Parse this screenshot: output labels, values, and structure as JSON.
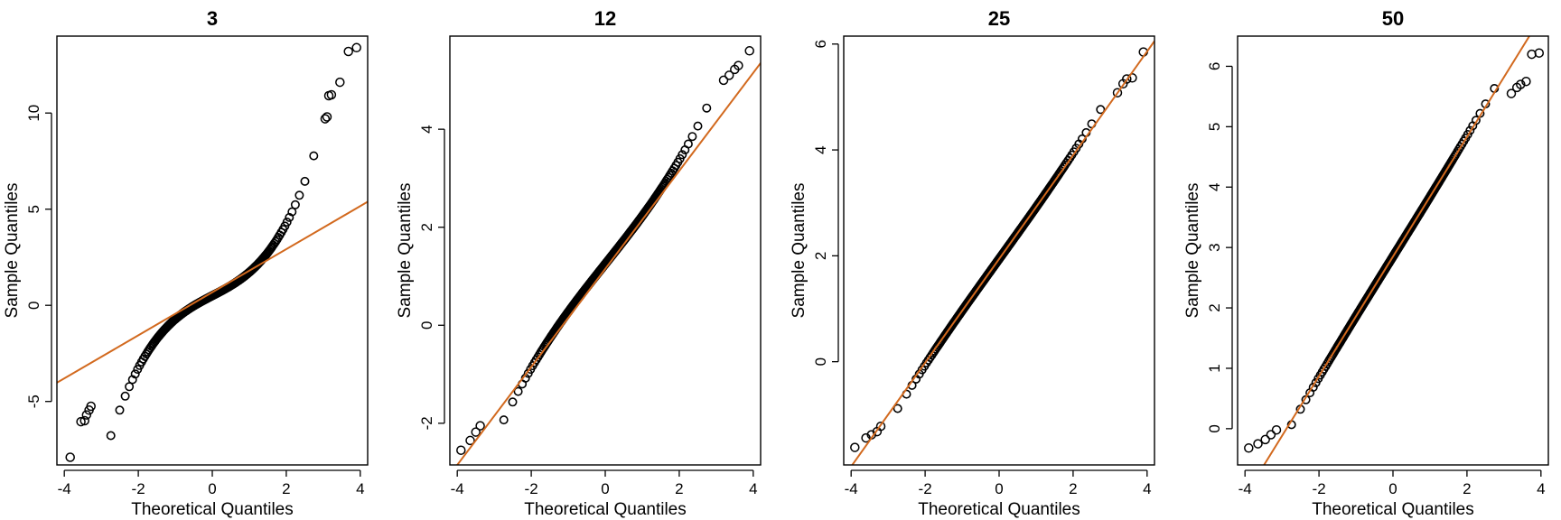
{
  "colors": {
    "points": "#000000",
    "reference_line": "#d2691e",
    "axes": "#000000",
    "background": "#ffffff"
  },
  "chart_data": [
    {
      "type": "scatter",
      "title": "3",
      "xlabel": "Theoretical Quantiles",
      "ylabel": "Sample Quantiles",
      "xlim": [
        -4.2,
        4.2
      ],
      "ylim": [
        -8.3,
        14.0
      ],
      "xticks": [
        -4,
        -2,
        0,
        2,
        4
      ],
      "yticks": [
        -5,
        0,
        5,
        10
      ],
      "reference_line": {
        "slope": 1.12,
        "intercept": 0.68
      },
      "curve": {
        "kind": "cubic",
        "b": 1.0,
        "d": 0.22,
        "c": 0.5
      },
      "outliers": [
        [
          -3.84,
          -7.9
        ],
        [
          -3.55,
          -6.05
        ],
        [
          -3.45,
          -6.0
        ],
        [
          -3.4,
          -5.7
        ],
        [
          -3.33,
          -5.45
        ],
        [
          -3.28,
          -5.25
        ],
        [
          3.05,
          9.7
        ],
        [
          3.1,
          9.8
        ],
        [
          3.15,
          10.9
        ],
        [
          3.22,
          10.95
        ],
        [
          3.45,
          11.6
        ],
        [
          3.68,
          13.2
        ],
        [
          3.9,
          13.4
        ]
      ]
    },
    {
      "type": "scatter",
      "title": "12",
      "xlabel": "Theoretical Quantiles",
      "ylabel": "Sample Quantiles",
      "xlim": [
        -4.2,
        4.2
      ],
      "ylim": [
        -2.85,
        5.9
      ],
      "xticks": [
        -4,
        -2,
        0,
        2,
        4
      ],
      "yticks": [
        -2,
        0,
        2,
        4
      ],
      "reference_line": {
        "slope": 1.0,
        "intercept": 1.15
      },
      "curve": {
        "kind": "cubic",
        "b": 0.95,
        "d": 0.028,
        "c": 1.25
      },
      "outliers": [
        [
          -3.9,
          -2.55
        ],
        [
          -3.65,
          -2.35
        ],
        [
          -3.5,
          -2.18
        ],
        [
          -3.38,
          -2.05
        ],
        [
          3.2,
          5.0
        ],
        [
          3.35,
          5.1
        ],
        [
          3.5,
          5.22
        ],
        [
          3.6,
          5.3
        ],
        [
          3.9,
          5.6
        ]
      ]
    },
    {
      "type": "scatter",
      "title": "25",
      "xlabel": "Theoretical Quantiles",
      "ylabel": "Sample Quantiles",
      "xlim": [
        -4.2,
        4.2
      ],
      "ylim": [
        -1.95,
        6.15
      ],
      "xticks": [
        -4,
        -2,
        0,
        2,
        4
      ],
      "yticks": [
        0,
        2,
        4,
        6
      ],
      "reference_line": {
        "slope": 0.98,
        "intercept": 1.94
      },
      "curve": {
        "kind": "cubic",
        "b": 0.97,
        "d": 0.008,
        "c": 1.94
      },
      "outliers": [
        [
          -3.9,
          -1.62
        ],
        [
          -3.6,
          -1.44
        ],
        [
          -3.45,
          -1.38
        ],
        [
          -3.3,
          -1.32
        ],
        [
          -3.2,
          -1.22
        ],
        [
          3.2,
          5.08
        ],
        [
          3.35,
          5.25
        ],
        [
          3.45,
          5.34
        ],
        [
          3.6,
          5.36
        ],
        [
          3.9,
          5.85
        ]
      ]
    },
    {
      "type": "scatter",
      "title": "50",
      "xlabel": "Theoretical Quantiles",
      "ylabel": "Sample Quantiles",
      "xlim": [
        -4.2,
        4.2
      ],
      "ylim": [
        -0.6,
        6.5
      ],
      "xticks": [
        -4,
        -2,
        0,
        2,
        4
      ],
      "yticks": [
        0,
        1,
        2,
        3,
        4,
        5,
        6
      ],
      "reference_line": {
        "slope": 0.99,
        "intercept": 2.85
      },
      "curve": {
        "kind": "cubic",
        "b": 0.985,
        "d": 0.004,
        "c": 2.85
      },
      "outliers": [
        [
          -3.9,
          -0.32
        ],
        [
          -3.65,
          -0.25
        ],
        [
          -3.45,
          -0.18
        ],
        [
          -3.3,
          -0.1
        ],
        [
          -3.15,
          -0.02
        ],
        [
          3.2,
          5.55
        ],
        [
          3.35,
          5.65
        ],
        [
          3.45,
          5.7
        ],
        [
          3.6,
          5.75
        ],
        [
          3.75,
          6.2
        ],
        [
          3.95,
          6.22
        ]
      ]
    }
  ]
}
